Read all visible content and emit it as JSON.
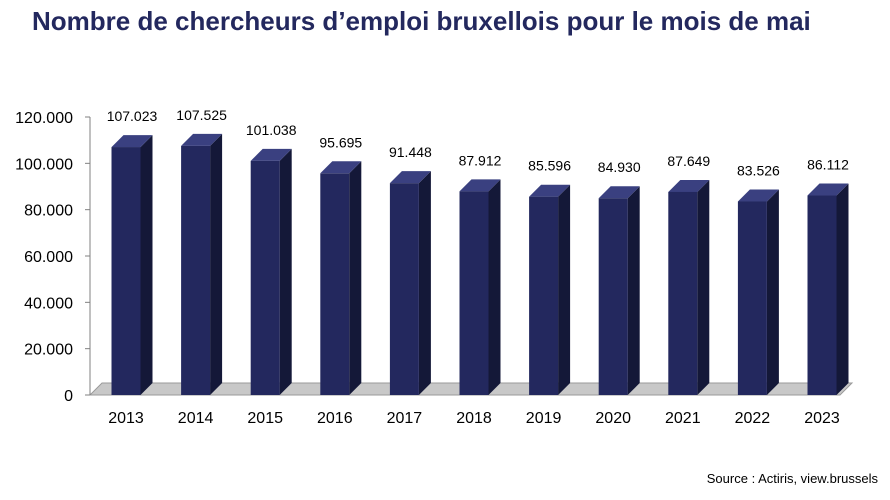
{
  "title": "Nombre de chercheurs d’emploi bruxellois pour le mois de mai",
  "source": "Source : Actiris, view.brussels",
  "colors": {
    "bar_front": "#23285e",
    "bar_side": "#141838",
    "bar_top": "#3a4080",
    "floor": "#c8c8c8"
  },
  "chart_data": {
    "type": "bar",
    "categories": [
      "2013",
      "2014",
      "2015",
      "2016",
      "2017",
      "2018",
      "2019",
      "2020",
      "2021",
      "2022",
      "2023"
    ],
    "values": [
      107023,
      107525,
      101038,
      95695,
      91448,
      87912,
      85596,
      84930,
      87649,
      83526,
      86112
    ],
    "value_labels": [
      "107.023",
      "107.525",
      "101.038",
      "95.695",
      "91.448",
      "87.912",
      "85.596",
      "84.930",
      "87.649",
      "83.526",
      "86.112"
    ],
    "y_ticks": [
      0,
      20000,
      40000,
      60000,
      80000,
      100000,
      120000
    ],
    "y_tick_labels": [
      "0",
      "20.000",
      "40.000",
      "60.000",
      "80.000",
      "100.000",
      "120.000"
    ],
    "ylim": [
      0,
      120000
    ],
    "grid": false,
    "legend": "none",
    "style": "3d"
  }
}
